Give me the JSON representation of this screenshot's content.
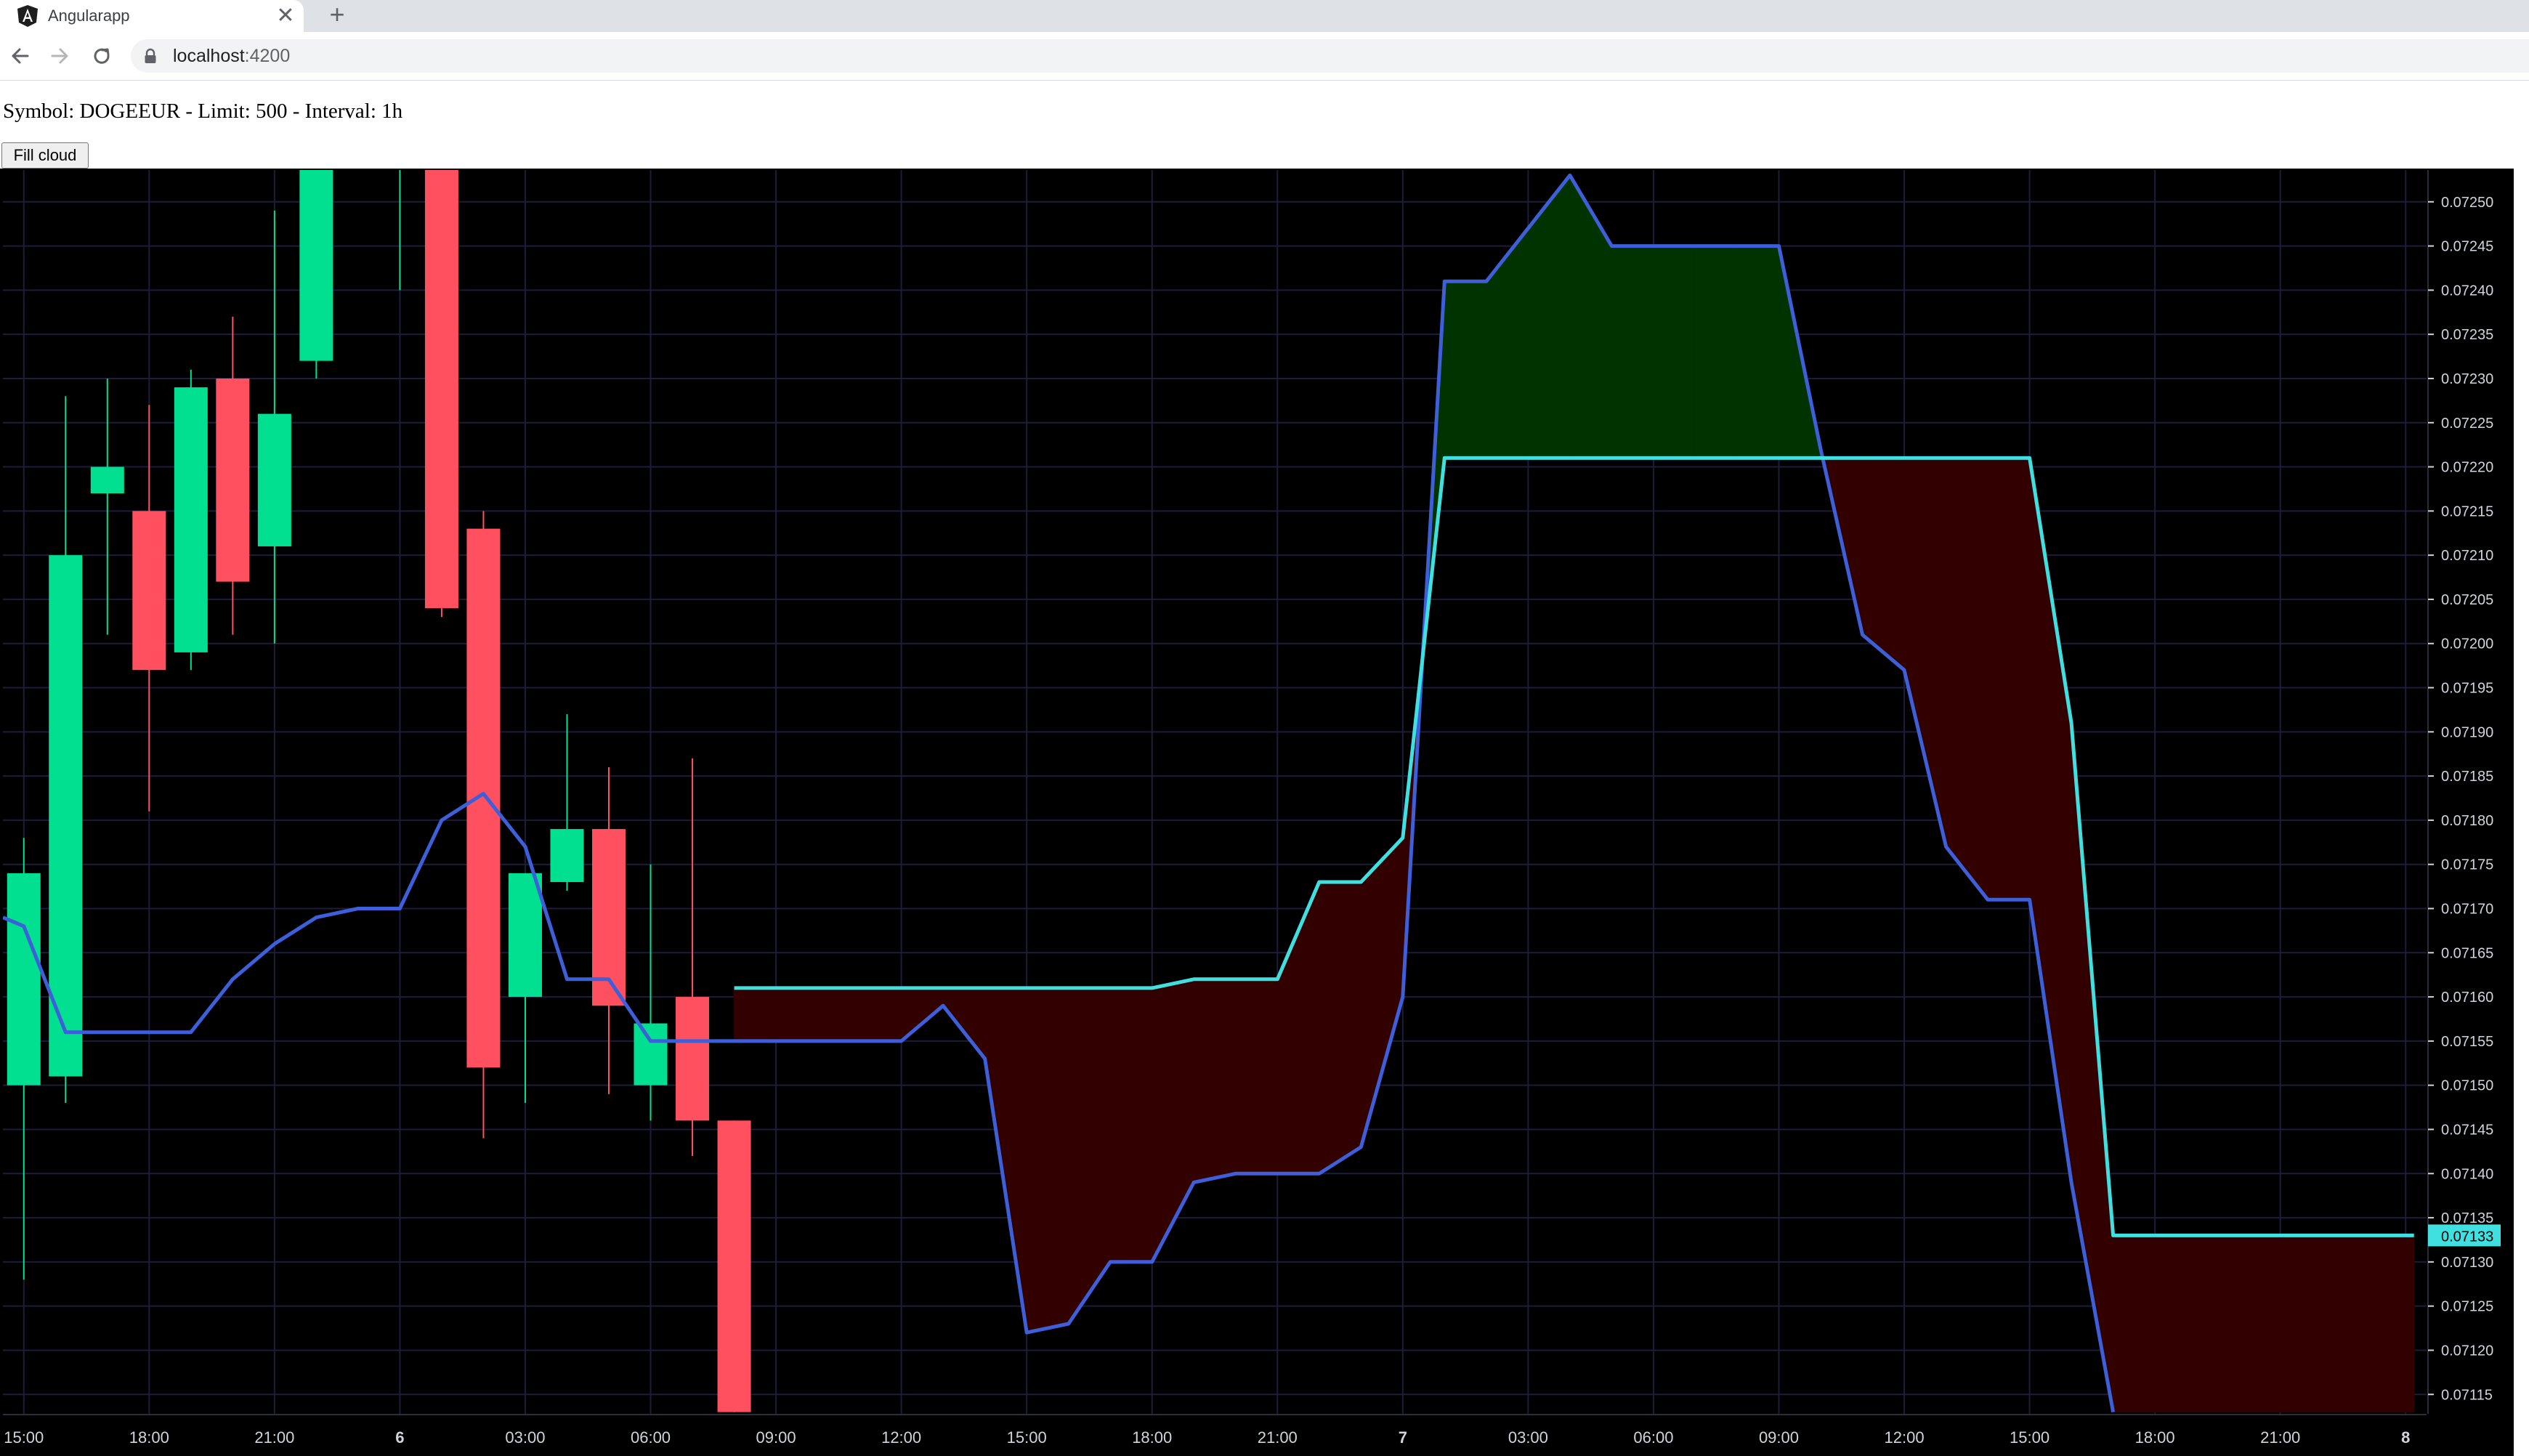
{
  "browser": {
    "tab_title": "Angularapp",
    "tab_close_glyph": "✕",
    "new_tab_glyph": "+",
    "url_host": "localhost",
    "url_port": ":4200",
    "icons": [
      "angular-icon",
      "close-icon",
      "plus-icon",
      "back-arrow-icon",
      "forward-arrow-icon",
      "reload-icon",
      "lock-icon"
    ]
  },
  "page": {
    "symbol_line": "Symbol: DOGEEUR - Limit: 500 - Interval: 1h",
    "fill_cloud_label": "Fill cloud"
  },
  "chart_data": {
    "type": "candlestick",
    "x_unit": "hours since the chart's first tick (15:00)",
    "y_range": [
      0.071128,
      0.072536
    ],
    "y_ticks": [
      "0.07250",
      "0.07245",
      "0.07240",
      "0.07235",
      "0.07230",
      "0.07225",
      "0.07220",
      "0.07215",
      "0.07210",
      "0.07205",
      "0.07200",
      "0.07195",
      "0.07190",
      "0.07185",
      "0.07180",
      "0.07175",
      "0.07170",
      "0.07165",
      "0.07160",
      "0.07155",
      "0.07150",
      "0.07145",
      "0.07140",
      "0.07135",
      "0.07130",
      "0.07125",
      "0.07120",
      "0.07115"
    ],
    "x_range": [
      -0.5,
      57.5
    ],
    "x_ticks": [
      {
        "x": 0,
        "label": "15:00"
      },
      {
        "x": 3,
        "label": "18:00"
      },
      {
        "x": 6,
        "label": "21:00"
      },
      {
        "x": 9,
        "label": "6"
      },
      {
        "x": 12,
        "label": "03:00"
      },
      {
        "x": 15,
        "label": "06:00"
      },
      {
        "x": 18,
        "label": "09:00"
      },
      {
        "x": 21,
        "label": "12:00"
      },
      {
        "x": 24,
        "label": "15:00"
      },
      {
        "x": 27,
        "label": "18:00"
      },
      {
        "x": 30,
        "label": "21:00"
      },
      {
        "x": 33,
        "label": "7"
      },
      {
        "x": 36,
        "label": "03:00"
      },
      {
        "x": 39,
        "label": "06:00"
      },
      {
        "x": 42,
        "label": "09:00"
      },
      {
        "x": 45,
        "label": "12:00"
      },
      {
        "x": 48,
        "label": "15:00"
      },
      {
        "x": 51,
        "label": "18:00"
      },
      {
        "x": 54,
        "label": "21:00"
      },
      {
        "x": 57,
        "label": "8"
      }
    ],
    "candles": [
      {
        "x": 0,
        "open": 0.0715,
        "high": 0.07178,
        "low": 0.07128,
        "close": 0.07174
      },
      {
        "x": 1,
        "open": 0.07151,
        "high": 0.07228,
        "low": 0.07148,
        "close": 0.0721
      },
      {
        "x": 2,
        "open": 0.07217,
        "high": 0.0723,
        "low": 0.07201,
        "close": 0.0722
      },
      {
        "x": 3,
        "open": 0.07215,
        "high": 0.07227,
        "low": 0.07181,
        "close": 0.07197
      },
      {
        "x": 4,
        "open": 0.07199,
        "high": 0.07231,
        "low": 0.07197,
        "close": 0.07229
      },
      {
        "x": 5,
        "open": 0.0723,
        "high": 0.07237,
        "low": 0.07201,
        "close": 0.07207
      },
      {
        "x": 6,
        "open": 0.07211,
        "high": 0.07249,
        "low": 0.072,
        "close": 0.07226
      },
      {
        "x": 7,
        "open": 0.07232,
        "high": 0.07254,
        "low": 0.0723,
        "close": 0.07254
      },
      {
        "x": 9,
        "open": 0.07254,
        "high": 0.07254,
        "low": 0.0724,
        "close": 0.07254
      },
      {
        "x": 10,
        "open": 0.07254,
        "high": 0.07254,
        "low": 0.07203,
        "close": 0.07204
      },
      {
        "x": 11,
        "open": 0.07213,
        "high": 0.07215,
        "low": 0.07144,
        "close": 0.07152
      },
      {
        "x": 12,
        "open": 0.0716,
        "high": 0.07174,
        "low": 0.07148,
        "close": 0.07174
      },
      {
        "x": 13,
        "open": 0.07173,
        "high": 0.07192,
        "low": 0.07172,
        "close": 0.07179
      },
      {
        "x": 14,
        "open": 0.07179,
        "high": 0.07186,
        "low": 0.07149,
        "close": 0.07159
      },
      {
        "x": 15,
        "open": 0.0715,
        "high": 0.07175,
        "low": 0.07146,
        "close": 0.07157
      },
      {
        "x": 16,
        "open": 0.0716,
        "high": 0.07187,
        "low": 0.07142,
        "close": 0.07146
      },
      {
        "x": 17,
        "open": 0.07146,
        "high": 0.07146,
        "low": 0.07113,
        "close": 0.07113
      }
    ],
    "series": [
      {
        "color": "#3d5fd9",
        "points": [
          [
            -0.5,
            0.07169
          ],
          [
            0,
            0.07168
          ],
          [
            1,
            0.07156
          ],
          [
            2,
            0.07156
          ],
          [
            3,
            0.07156
          ],
          [
            4,
            0.07156
          ],
          [
            5,
            0.07162
          ],
          [
            6,
            0.07166
          ],
          [
            7,
            0.07169
          ],
          [
            8,
            0.0717
          ],
          [
            9,
            0.0717
          ],
          [
            10,
            0.0718
          ],
          [
            11,
            0.07183
          ],
          [
            12,
            0.07177
          ],
          [
            13,
            0.07162
          ],
          [
            14,
            0.07162
          ],
          [
            15,
            0.07155
          ],
          [
            16,
            0.07155
          ],
          [
            17,
            0.07155
          ],
          [
            18,
            0.07155
          ],
          [
            19,
            0.07155
          ],
          [
            20,
            0.07155
          ],
          [
            21,
            0.07155
          ],
          [
            22,
            0.07159
          ],
          [
            23,
            0.07153
          ],
          [
            24,
            0.07122
          ],
          [
            25,
            0.07123
          ],
          [
            26,
            0.0713
          ],
          [
            27,
            0.0713
          ],
          [
            28,
            0.07139
          ],
          [
            29,
            0.0714
          ],
          [
            30,
            0.0714
          ],
          [
            31,
            0.0714
          ],
          [
            32,
            0.07143
          ],
          [
            33,
            0.0716
          ],
          [
            34,
            0.07241
          ],
          [
            35,
            0.07241
          ],
          [
            36,
            0.07247
          ],
          [
            37,
            0.07253
          ],
          [
            38,
            0.07245
          ],
          [
            39,
            0.07245
          ],
          [
            40,
            0.07245
          ],
          [
            41,
            0.07245
          ],
          [
            42,
            0.07245
          ],
          [
            43,
            0.07222
          ],
          [
            44,
            0.07201
          ],
          [
            45,
            0.07197
          ],
          [
            46,
            0.07177
          ],
          [
            47,
            0.07171
          ],
          [
            48,
            0.07171
          ],
          [
            49,
            0.07139
          ],
          [
            50,
            0.07113
          ]
        ]
      },
      {
        "color": "#40e0e0",
        "points": [
          [
            17,
            0.07161
          ],
          [
            18,
            0.07161
          ],
          [
            19,
            0.07161
          ],
          [
            20,
            0.07161
          ],
          [
            21,
            0.07161
          ],
          [
            22,
            0.07161
          ],
          [
            23,
            0.07161
          ],
          [
            24,
            0.07161
          ],
          [
            25,
            0.07161
          ],
          [
            26,
            0.07161
          ],
          [
            27,
            0.07161
          ],
          [
            28,
            0.07162
          ],
          [
            29,
            0.07162
          ],
          [
            30,
            0.07162
          ],
          [
            31,
            0.07173
          ],
          [
            32,
            0.07173
          ],
          [
            33,
            0.07178
          ],
          [
            34,
            0.07221
          ],
          [
            35,
            0.07221
          ],
          [
            36,
            0.07221
          ],
          [
            37,
            0.07221
          ],
          [
            38,
            0.07221
          ],
          [
            39,
            0.07221
          ],
          [
            40,
            0.07221
          ],
          [
            41,
            0.07221
          ],
          [
            42,
            0.07221
          ],
          [
            43,
            0.07221
          ],
          [
            44,
            0.07221
          ],
          [
            45,
            0.07221
          ],
          [
            46,
            0.07221
          ],
          [
            47,
            0.07221
          ],
          [
            48,
            0.07221
          ],
          [
            49,
            0.07191
          ],
          [
            50,
            0.07133
          ],
          [
            51,
            0.07133
          ],
          [
            52,
            0.07133
          ],
          [
            53,
            0.07133
          ],
          [
            54,
            0.07133
          ],
          [
            55,
            0.07133
          ],
          [
            56,
            0.07133
          ],
          [
            57,
            0.07133
          ],
          [
            57.2,
            0.07133
          ]
        ]
      }
    ],
    "last_price": "0.07133",
    "last_price_value": 0.07133,
    "colors": {
      "background": "#000000",
      "grid": "#1d1d3a",
      "text": "#d1d4dc",
      "up_candle": "#00e090",
      "down_candle": "#ff5060",
      "cloud_bull": "#003300",
      "cloud_bear": "#330000",
      "price_tag": "#40e0e0"
    }
  }
}
